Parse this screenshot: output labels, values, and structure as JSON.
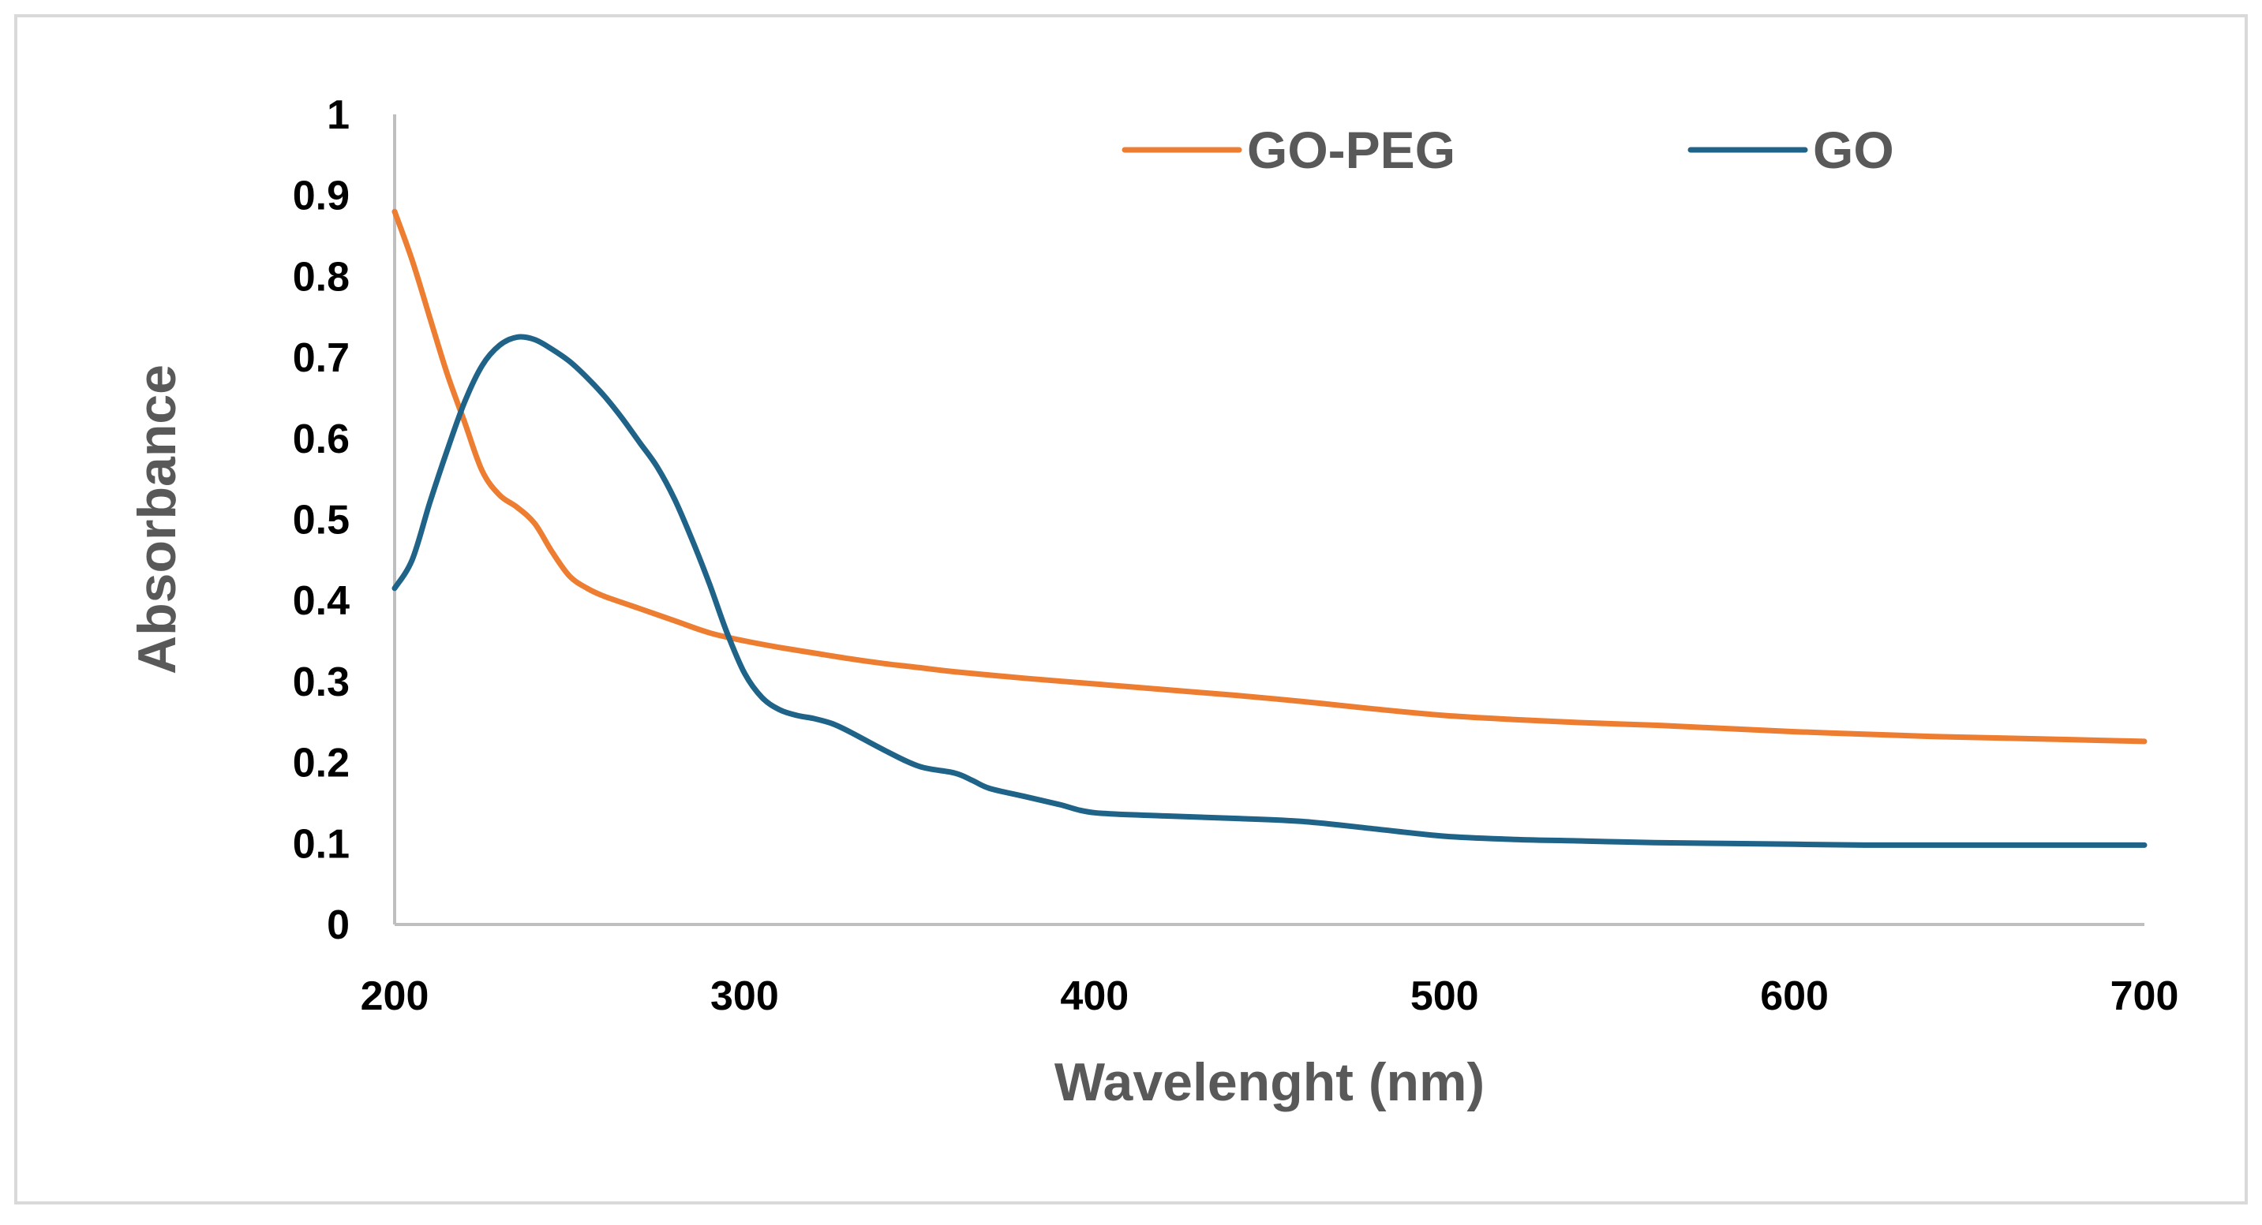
{
  "chart_data": {
    "type": "line",
    "title": "",
    "xlabel": "Wavelenght  (nm)",
    "ylabel": "Absorbance",
    "xlim": [
      200,
      700
    ],
    "ylim": [
      0,
      1
    ],
    "x_ticks": [
      "200",
      "300",
      "400",
      "500",
      "600",
      "700"
    ],
    "y_ticks": [
      "0",
      "0.1",
      "0.2",
      "0.3",
      "0.4",
      "0.5",
      "0.6",
      "0.7",
      "0.8",
      "0.9",
      "1"
    ],
    "legend_position": "top-right",
    "grid": false,
    "series": [
      {
        "name": "GO-PEG",
        "color": "#ED7D31",
        "points": [
          [
            200,
            0.88
          ],
          [
            205,
            0.82
          ],
          [
            210,
            0.75
          ],
          [
            215,
            0.68
          ],
          [
            220,
            0.62
          ],
          [
            225,
            0.56
          ],
          [
            230,
            0.53
          ],
          [
            235,
            0.515
          ],
          [
            240,
            0.495
          ],
          [
            245,
            0.46
          ],
          [
            250,
            0.43
          ],
          [
            255,
            0.415
          ],
          [
            260,
            0.405
          ],
          [
            270,
            0.39
          ],
          [
            280,
            0.375
          ],
          [
            290,
            0.36
          ],
          [
            300,
            0.35
          ],
          [
            310,
            0.342
          ],
          [
            320,
            0.335
          ],
          [
            330,
            0.328
          ],
          [
            340,
            0.322
          ],
          [
            350,
            0.317
          ],
          [
            360,
            0.312
          ],
          [
            380,
            0.304
          ],
          [
            400,
            0.297
          ],
          [
            420,
            0.29
          ],
          [
            440,
            0.283
          ],
          [
            460,
            0.275
          ],
          [
            480,
            0.266
          ],
          [
            500,
            0.258
          ],
          [
            520,
            0.253
          ],
          [
            540,
            0.249
          ],
          [
            560,
            0.246
          ],
          [
            580,
            0.242
          ],
          [
            600,
            0.238
          ],
          [
            620,
            0.235
          ],
          [
            640,
            0.232
          ],
          [
            660,
            0.23
          ],
          [
            680,
            0.228
          ],
          [
            700,
            0.226
          ]
        ]
      },
      {
        "name": "GO",
        "color": "#1F6388",
        "points": [
          [
            200,
            0.415
          ],
          [
            205,
            0.45
          ],
          [
            210,
            0.52
          ],
          [
            215,
            0.585
          ],
          [
            220,
            0.645
          ],
          [
            225,
            0.69
          ],
          [
            230,
            0.715
          ],
          [
            235,
            0.725
          ],
          [
            240,
            0.722
          ],
          [
            245,
            0.71
          ],
          [
            250,
            0.695
          ],
          [
            255,
            0.675
          ],
          [
            260,
            0.652
          ],
          [
            265,
            0.625
          ],
          [
            270,
            0.595
          ],
          [
            275,
            0.565
          ],
          [
            280,
            0.525
          ],
          [
            285,
            0.475
          ],
          [
            290,
            0.42
          ],
          [
            295,
            0.36
          ],
          [
            300,
            0.31
          ],
          [
            305,
            0.28
          ],
          [
            310,
            0.265
          ],
          [
            315,
            0.258
          ],
          [
            320,
            0.254
          ],
          [
            325,
            0.248
          ],
          [
            330,
            0.238
          ],
          [
            340,
            0.215
          ],
          [
            350,
            0.195
          ],
          [
            360,
            0.187
          ],
          [
            365,
            0.178
          ],
          [
            370,
            0.168
          ],
          [
            380,
            0.158
          ],
          [
            390,
            0.148
          ],
          [
            400,
            0.138
          ],
          [
            420,
            0.134
          ],
          [
            440,
            0.131
          ],
          [
            460,
            0.127
          ],
          [
            480,
            0.118
          ],
          [
            500,
            0.109
          ],
          [
            520,
            0.105
          ],
          [
            540,
            0.103
          ],
          [
            560,
            0.101
          ],
          [
            580,
            0.1
          ],
          [
            600,
            0.099
          ],
          [
            620,
            0.098
          ],
          [
            640,
            0.098
          ],
          [
            660,
            0.098
          ],
          [
            680,
            0.098
          ],
          [
            700,
            0.098
          ]
        ]
      }
    ]
  },
  "frame_color": "#D9D9D9",
  "axis_color": "#BFBFBF"
}
